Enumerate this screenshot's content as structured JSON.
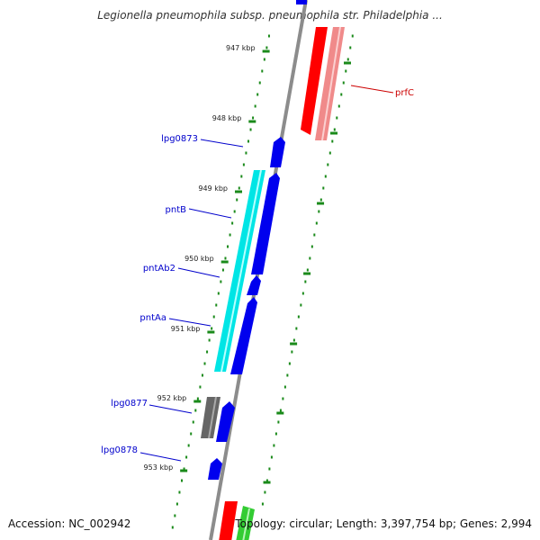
{
  "title": "Legionella pneumophila subsp. pneumophila str. Philadelphia ...",
  "accession": "Accession: NC_002942",
  "summary": "Topology: circular; Length: 3,397,754 bp; Genes: 2,994",
  "colors": {
    "backbone": "#888888",
    "tick": "#1a8a1a",
    "tick_label": "#222222",
    "gene_label_forward": "#cc0000",
    "gene_label_reverse": "#0000cc",
    "cds_reverse": "#0000ee",
    "cds_forward": "#ff0000",
    "rna_cyan": "#00e5e5",
    "rna_pink": "#f08a8a",
    "gray_feature": "#666666",
    "green_feature": "#33cc33"
  },
  "ticks": [
    {
      "kbp": 947,
      "label": "947 kbp"
    },
    {
      "kbp": 948,
      "label": "948 kbp"
    },
    {
      "kbp": 949,
      "label": "949 kbp"
    },
    {
      "kbp": 950,
      "label": "950 kbp"
    },
    {
      "kbp": 951,
      "label": "951 kbp"
    },
    {
      "kbp": 952,
      "label": "952 kbp"
    },
    {
      "kbp": 953,
      "label": "953 kbp"
    }
  ],
  "gene_labels": [
    {
      "name": "prfC",
      "strand": "forward"
    },
    {
      "name": "lpg0873",
      "strand": "reverse"
    },
    {
      "name": "pntB",
      "strand": "reverse"
    },
    {
      "name": "pntAb2",
      "strand": "reverse"
    },
    {
      "name": "pntAa",
      "strand": "reverse"
    },
    {
      "name": "lpg0877",
      "strand": "reverse"
    },
    {
      "name": "lpg0878",
      "strand": "reverse"
    }
  ]
}
